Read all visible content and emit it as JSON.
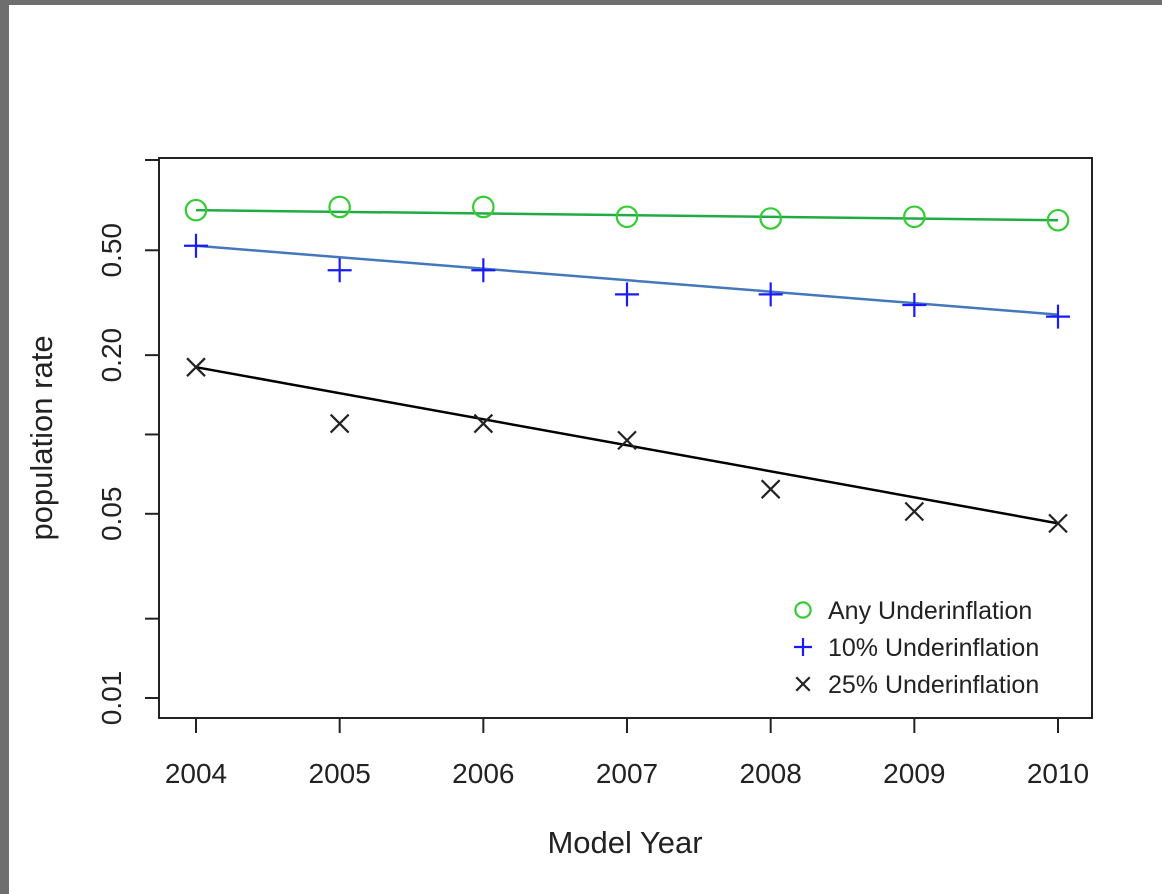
{
  "chart_data": {
    "type": "scatter",
    "title": "",
    "xlabel": "Model Year",
    "ylabel": "population rate",
    "y_scale": "log",
    "xlim": [
      2004,
      2010
    ],
    "ylim": [
      0.01,
      1.0
    ],
    "x_ticks": [
      2004,
      2005,
      2006,
      2007,
      2008,
      2009,
      2010
    ],
    "y_ticks": [
      {
        "value": 0.01,
        "label": "0.01"
      },
      {
        "value": 0.02,
        "label": ""
      },
      {
        "value": 0.05,
        "label": "0.05"
      },
      {
        "value": 0.1,
        "label": ""
      },
      {
        "value": 0.2,
        "label": "0.20"
      },
      {
        "value": 0.5,
        "label": "0.50"
      },
      {
        "value": 1.0,
        "label": ""
      }
    ],
    "grid": false,
    "legend_position": "bottom-right",
    "x": [
      2004,
      2005,
      2006,
      2007,
      2008,
      2009,
      2010
    ],
    "series": [
      {
        "name": "Any Underinflation",
        "marker": "circle",
        "color": "#33cc33",
        "trend_color": "#22aa44",
        "values": [
          0.71,
          0.73,
          0.73,
          0.67,
          0.66,
          0.67,
          0.65
        ],
        "trend": [
          0.71,
          0.65
        ]
      },
      {
        "name": "10% Underinflation",
        "marker": "plus",
        "color": "#1a1aff",
        "trend_color": "#4477bb",
        "values": [
          0.52,
          0.42,
          0.42,
          0.34,
          0.34,
          0.31,
          0.28
        ],
        "trend": [
          0.52,
          0.285
        ]
      },
      {
        "name": "25% Underinflation",
        "marker": "cross",
        "color": "#222222",
        "trend_color": "#000000",
        "values": [
          0.18,
          0.11,
          0.11,
          0.095,
          0.062,
          0.051,
          0.046
        ],
        "trend": [
          0.18,
          0.046
        ]
      }
    ]
  }
}
